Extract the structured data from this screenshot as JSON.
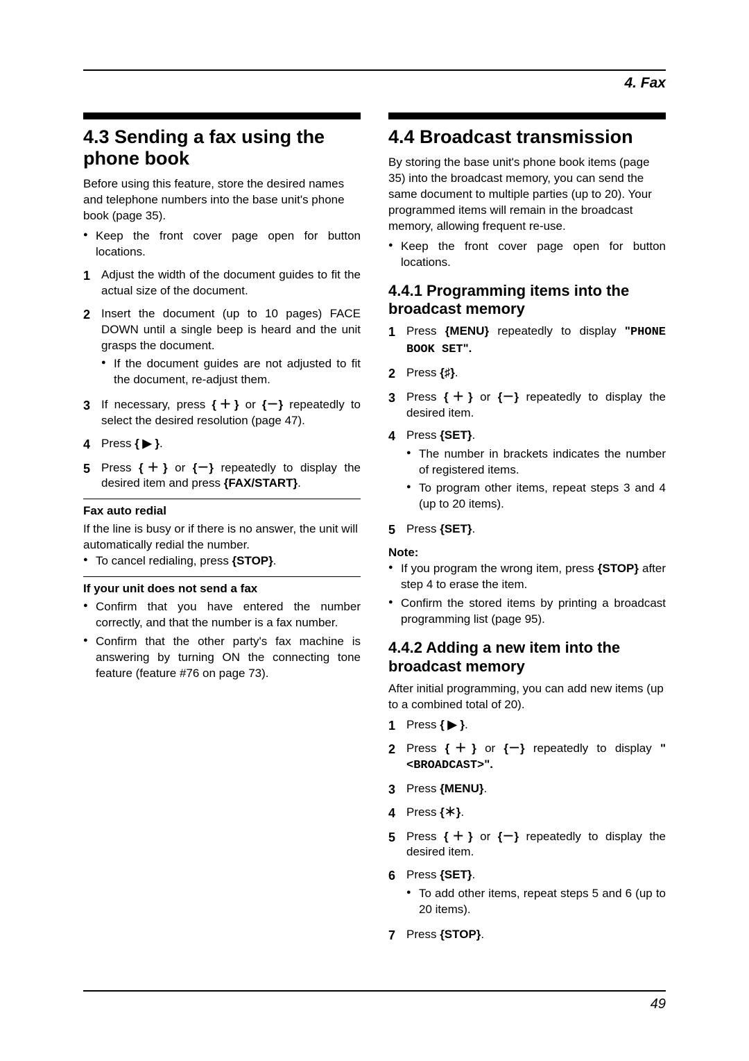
{
  "chapter": "4. Fax",
  "page_number": "49",
  "left": {
    "heading": "4.3 Sending a fax using the phone book",
    "intro": "Before using this feature, store the desired names and telephone numbers into the base unit's phone book (page 35).",
    "bullet1": "Keep the front cover page open for button locations.",
    "step1": "Adjust the width of the document guides to fit the actual size of the document.",
    "step2": "Insert the document (up to 10 pages) FACE DOWN until a single beep is heard and the unit grasps the document.",
    "step2_sub": "If the document guides are not adjusted to fit the document, re-adjust them.",
    "step3_a": "If necessary, press ",
    "step3_b": " or ",
    "step3_c": " repeatedly to select the desired resolution (page 47).",
    "step4_a": "Press ",
    "step4_b": ".",
    "step5_a": "Press ",
    "step5_b": " or ",
    "step5_c": " repeatedly to display the desired item and press ",
    "step5_d": ".",
    "fax_auto_redial_h": "Fax auto redial",
    "fax_auto_redial_p": "If the line is busy or if there is no answer, the unit will automatically redial the number.",
    "fax_auto_redial_b_a": "To cancel redialing, press ",
    "fax_auto_redial_b_b": ".",
    "no_send_h": "If your unit does not send a fax",
    "no_send_b1": "Confirm that you have entered the number correctly, and that the number is a fax number.",
    "no_send_b2": "Confirm that the other party's fax machine is answering by turning ON the connecting tone feature (feature #76 on page 73)."
  },
  "right": {
    "heading": "4.4 Broadcast transmission",
    "intro": "By storing the base unit's phone book items (page 35) into the broadcast memory, you can send the same document to multiple parties (up to 20). Your programmed items will remain in the broadcast memory, allowing frequent re-use.",
    "bullet1": "Keep the front cover page open for button locations.",
    "sub1_h": "4.4.1 Programming items into the broadcast memory",
    "s1_1a": "Press ",
    "s1_1b": " repeatedly to display ",
    "s1_1c": "\"",
    "s1_1d": "PHONE BOOK SET",
    "s1_1e": "\".",
    "s1_2a": "Press ",
    "s1_2b": ".",
    "s1_3a": "Press ",
    "s1_3b": " or ",
    "s1_3c": " repeatedly to display the desired item.",
    "s1_4a": "Press ",
    "s1_4b": ".",
    "s1_4_sub1": "The number in brackets indicates the number of registered items.",
    "s1_4_sub2": "To program other items, repeat steps 3 and 4 (up to 20 items).",
    "s1_5a": "Press ",
    "s1_5b": ".",
    "note_label": "Note:",
    "note_b1a": "If you program the wrong item, press ",
    "note_b1b": " after step 4 to erase the item.",
    "note_b2": "Confirm the stored items by printing a broadcast programming list (page 95).",
    "sub2_h": "4.4.2 Adding a new item into the broadcast memory",
    "sub2_intro": "After initial programming, you can add new items (up to a combined total of 20).",
    "s2_1a": "Press ",
    "s2_1b": ".",
    "s2_2a": "Press ",
    "s2_2b": " or ",
    "s2_2c": " repeatedly to display ",
    "s2_2d": "\"",
    "s2_2e": "<BROADCAST>",
    "s2_2f": "\".",
    "s2_3a": "Press ",
    "s2_3b": ".",
    "s2_4a": "Press ",
    "s2_4b": ".",
    "s2_5a": "Press ",
    "s2_5b": " or ",
    "s2_5c": " repeatedly to display the desired item.",
    "s2_6a": "Press ",
    "s2_6b": ".",
    "s2_6_sub": "To add other items, repeat steps 5 and 6 (up to 20 items).",
    "s2_7a": "Press ",
    "s2_7b": "."
  },
  "keys": {
    "plus": "{＋}",
    "minus": "{－}",
    "right": "{ ▶ }",
    "hash": "{♯}",
    "star": "{＊}",
    "menu": "{MENU}",
    "set": "{SET}",
    "stop": "{STOP}",
    "faxstart": "{FAX/START}"
  }
}
